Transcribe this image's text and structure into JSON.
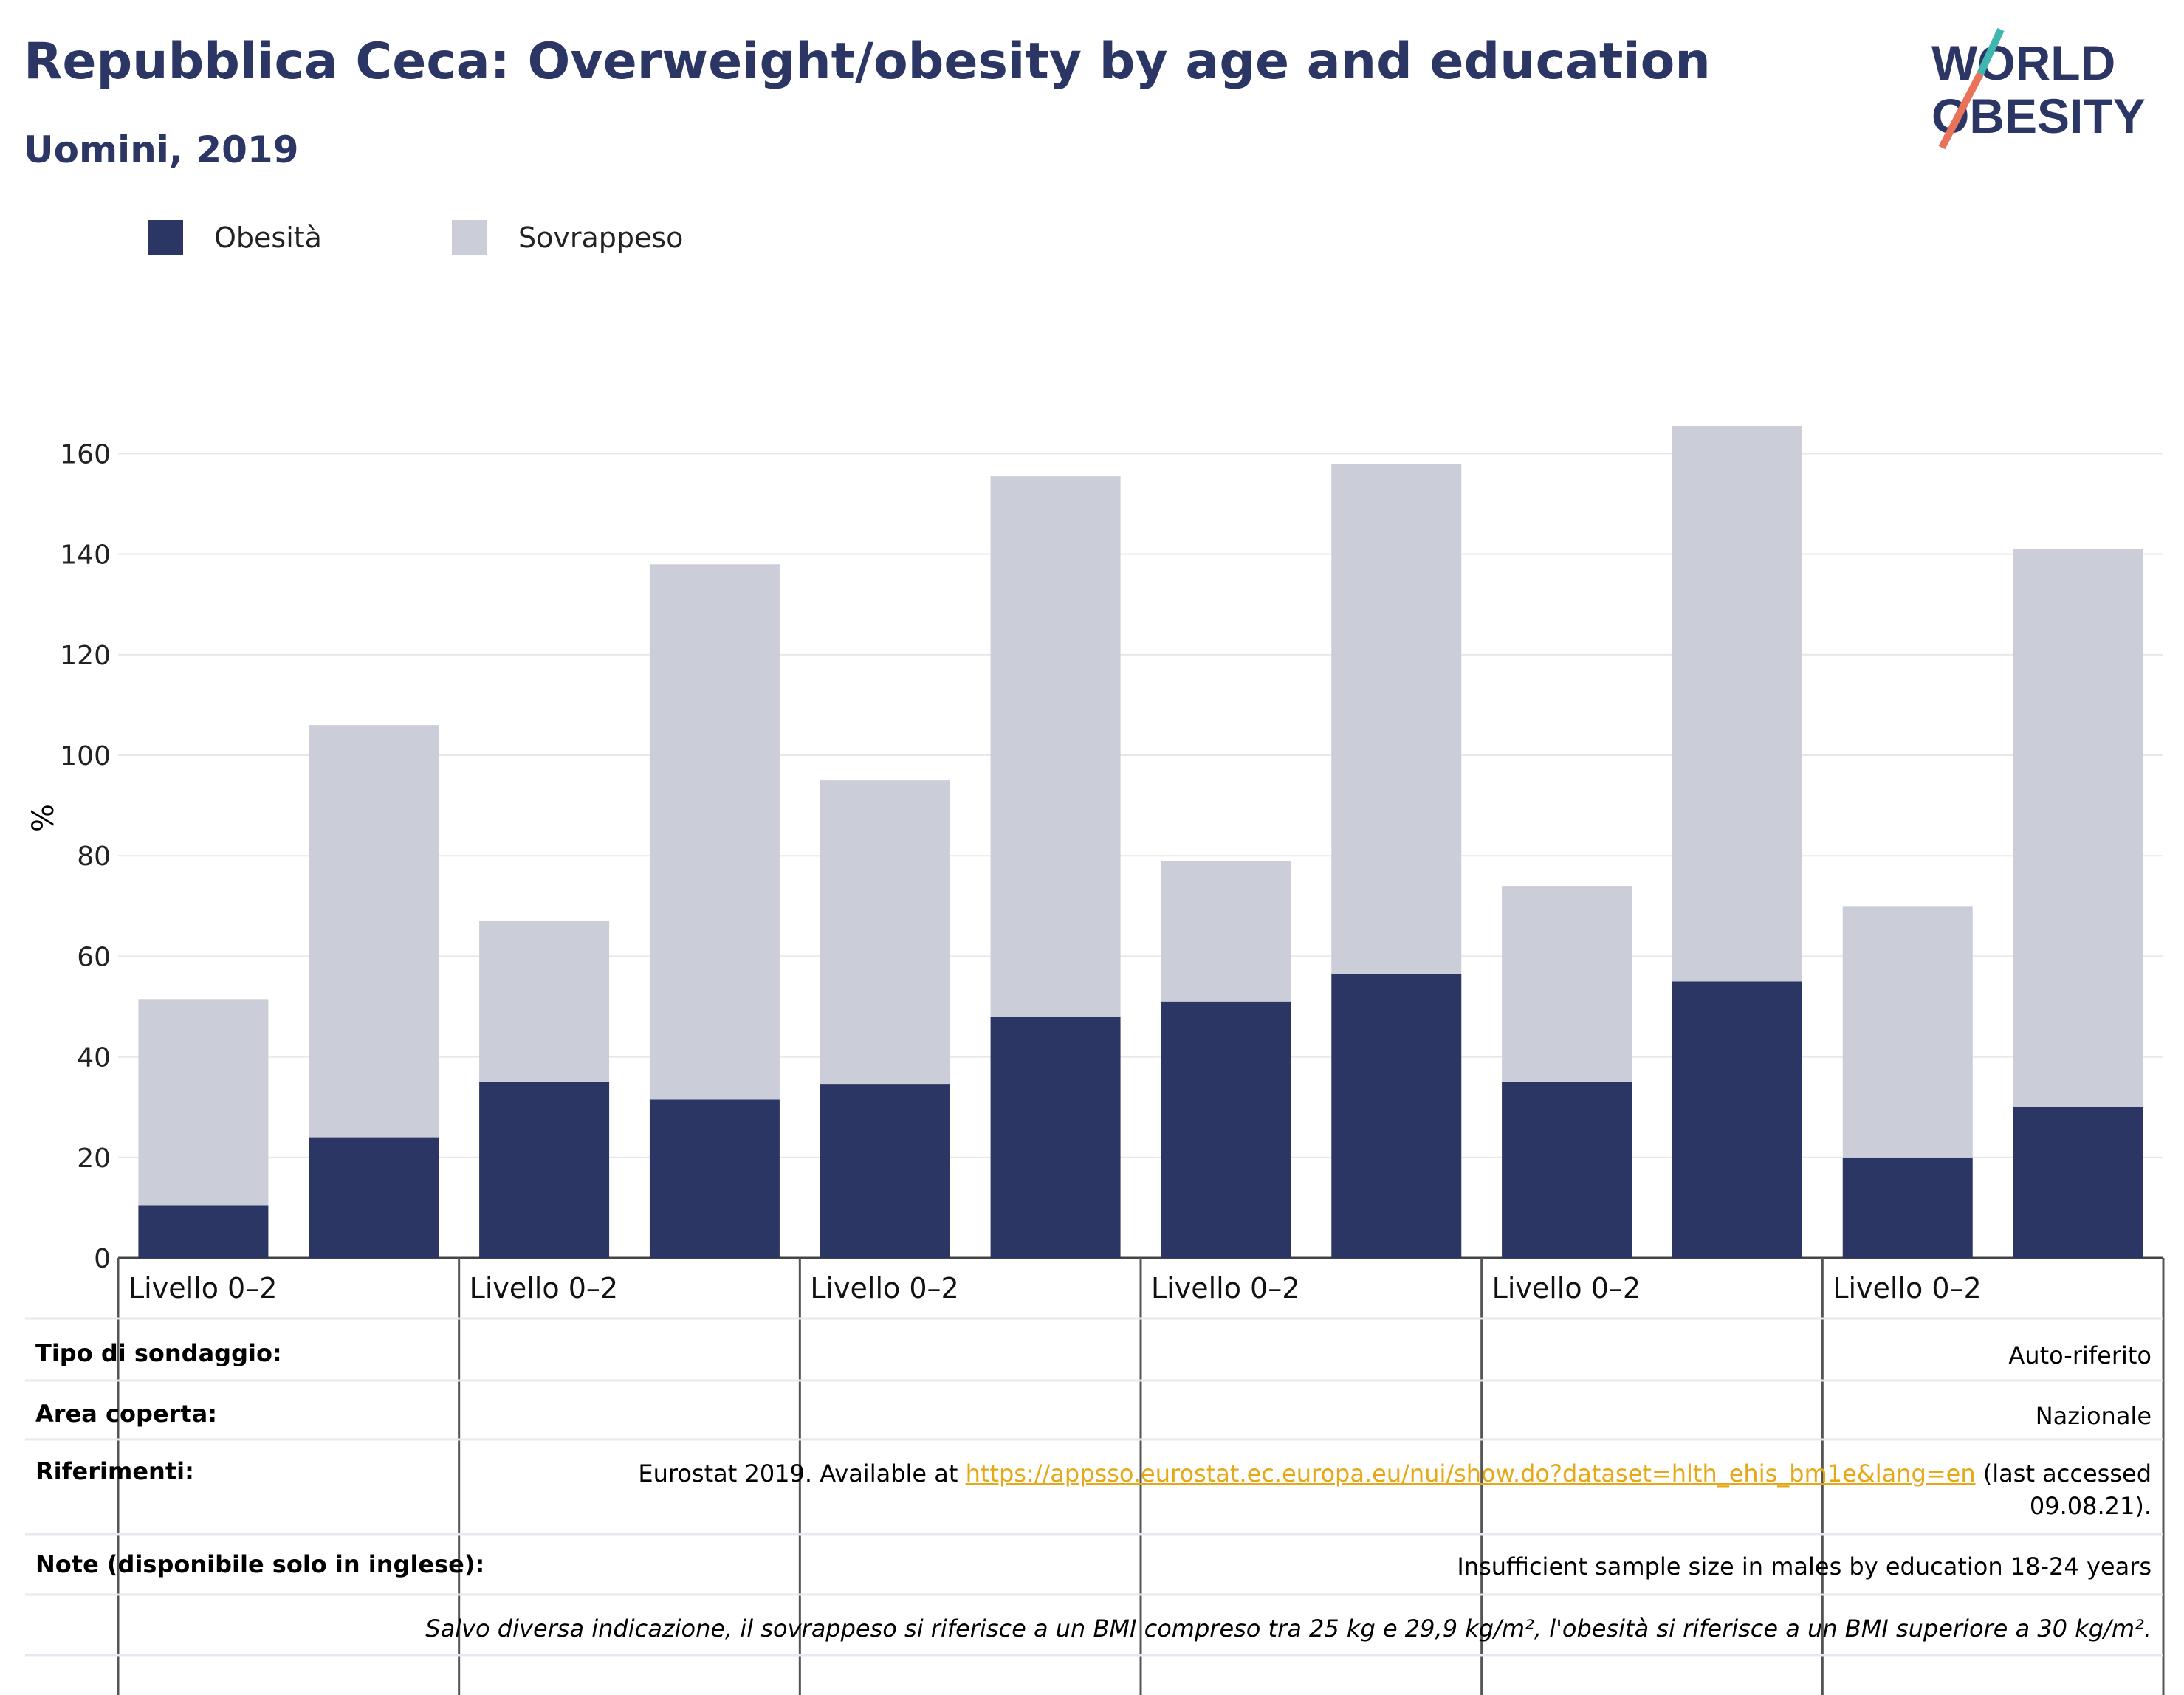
{
  "title": "Repubblica Ceca: Overweight/obesity by age and education",
  "subtitle": "Uomini, 2019",
  "logo": {
    "line1": "WORLD",
    "line2": "OBESITY",
    "colors": [
      "#2b3664",
      "#3fb6b0",
      "#e8735a"
    ]
  },
  "legend": [
    {
      "label": "Obesità",
      "color": "#2b3664"
    },
    {
      "label": "Sovrappeso",
      "color": "#cbcdd8"
    }
  ],
  "chart_data": {
    "type": "bar",
    "stacked": true,
    "ylabel": "%",
    "ylim": [
      0,
      168
    ],
    "yticks": [
      0,
      20,
      40,
      60,
      80,
      100,
      120,
      140,
      160
    ],
    "grid": true,
    "group_labels": [
      "Livello 0–2",
      "Livello 0–2",
      "Livello 0–2",
      "Livello 0–2",
      "Livello 0–2",
      "Livello 0–2"
    ],
    "bars_per_group": 2,
    "series": [
      {
        "name": "Obesità",
        "color": "#2b3664",
        "values": [
          10.5,
          24,
          35,
          31.5,
          34.5,
          48,
          51,
          56.5,
          35,
          55,
          20,
          30
        ]
      },
      {
        "name": "Sovrappeso",
        "color": "#cbcdd8",
        "values": [
          41,
          82,
          32,
          106.5,
          60.5,
          107.5,
          28,
          101.5,
          39,
          110.5,
          50,
          111
        ]
      }
    ]
  },
  "info": {
    "survey_type": {
      "label": "Tipo di sondaggio:",
      "value": "Auto-riferito"
    },
    "area": {
      "label": "Area coperta:",
      "value": "Nazionale"
    },
    "references": {
      "label": "Riferimenti:",
      "prefix": "Eurostat 2019. Available at ",
      "link": "https://appsso.eurostat.ec.europa.eu/nui/show.do?dataset=hlth_ehis_bm1e&lang=en",
      "suffix": " (last accessed",
      "line2": "09.08.21)."
    },
    "notes": {
      "label": "Note (disponibile solo in inglese):",
      "value": "Insufficient sample size in males by education 18-24 years"
    },
    "definition": "Salvo diversa indicazione, il sovrappeso si riferisce a un BMI compreso tra 25 kg e 29,9 kg/m², l'obesità si riferisce a un BMI superiore a 30 kg/m²."
  }
}
